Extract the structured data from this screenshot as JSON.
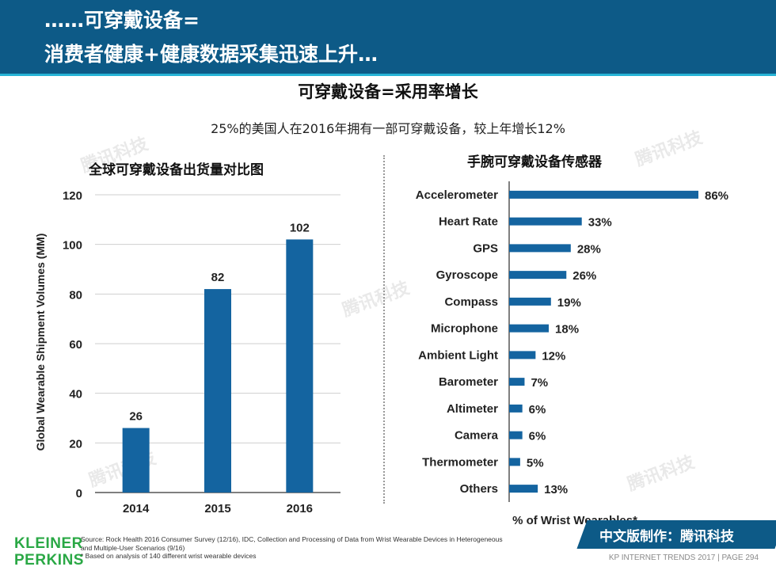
{
  "header": {
    "line1": "……可穿戴设备=",
    "line2": "消费者健康+健康数据采集迅速上升…"
  },
  "main_title": "可穿戴设备=采用率增长",
  "subtitle": "25%的美国人在2016年拥有一部可穿戴设备，较上年增长12%",
  "watermark": "腾讯科技",
  "chart_data": [
    {
      "type": "bar",
      "title": "全球可穿戴设备出货量对比图",
      "categories": [
        "2014",
        "2015",
        "2016"
      ],
      "values": [
        26,
        82,
        102
      ],
      "data_labels": [
        "26",
        "82",
        "102"
      ],
      "xlabel": "",
      "ylabel": "Global Wearable Shipment Volumes (MM)",
      "ylim": [
        0,
        120
      ],
      "yticks": [
        0,
        20,
        40,
        60,
        80,
        100,
        120
      ],
      "grid": true,
      "bar_color": "#1464a0"
    },
    {
      "type": "bar",
      "orientation": "horizontal",
      "title": "手腕可穿戴设备传感器",
      "categories": [
        "Accelerometer",
        "Heart Rate",
        "GPS",
        "Gyroscope",
        "Compass",
        "Microphone",
        "Ambient Light",
        "Barometer",
        "Altimeter",
        "Camera",
        "Thermometer",
        "Others"
      ],
      "values": [
        86,
        33,
        28,
        26,
        19,
        18,
        12,
        7,
        6,
        6,
        5,
        13
      ],
      "data_labels": [
        "86%",
        "33%",
        "28%",
        "26%",
        "19%",
        "18%",
        "12%",
        "7%",
        "6%",
        "6%",
        "5%",
        "13%"
      ],
      "xlabel": "% of Wrist Wearables*",
      "xlim": [
        0,
        100
      ],
      "grid": false,
      "bar_color": "#1464a0"
    }
  ],
  "logo": {
    "line1": "KLEINER",
    "line2": "PERKINS"
  },
  "source": {
    "line1": "Source: Rock Health 2016 Consumer Survey (12/16), IDC, Collection and Processing of Data from Wrist Wearable Devices in Heterogeneous",
    "line2": "and Multiple-User Scenarios (9/16)",
    "line3": "* Based on analysis of 140 different wrist wearable devices"
  },
  "badge": {
    "text": "中文版制作：腾讯科技"
  },
  "footer": {
    "text": "KP INTERNET TRENDS 2017  |  PAGE 294"
  }
}
